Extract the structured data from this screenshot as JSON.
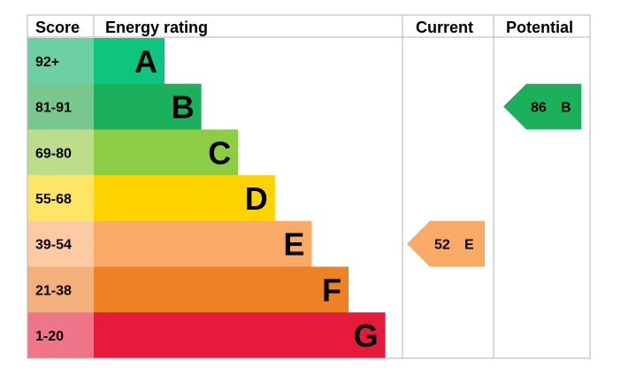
{
  "chart_data": {
    "type": "bar",
    "headers": {
      "score": "Score",
      "rating": "Energy rating",
      "current": "Current",
      "potential": "Potential"
    },
    "bands": [
      {
        "score": "92+",
        "letter": "A",
        "color": "#0ec47f",
        "score_bg": "#6ccfa6"
      },
      {
        "score": "81-91",
        "letter": "B",
        "color": "#1cb05d",
        "score_bg": "#77c78f"
      },
      {
        "score": "69-80",
        "letter": "C",
        "color": "#8dcd46",
        "score_bg": "#bddd8a"
      },
      {
        "score": "55-68",
        "letter": "D",
        "color": "#fed300",
        "score_bg": "#fee566"
      },
      {
        "score": "39-54",
        "letter": "E",
        "color": "#f9aa67",
        "score_bg": "#fccaa3"
      },
      {
        "score": "21-38",
        "letter": "F",
        "color": "#ee8126",
        "score_bg": "#f4b07c"
      },
      {
        "score": "1-20",
        "letter": "G",
        "color": "#e51a3c",
        "score_bg": "#ef768a"
      }
    ],
    "current": {
      "value": 52,
      "letter": "E",
      "color": "#f9aa67",
      "text_color": "#000000"
    },
    "potential": {
      "value": 86,
      "letter": "B",
      "color": "#1cb05d",
      "text_color": "#000000"
    }
  }
}
